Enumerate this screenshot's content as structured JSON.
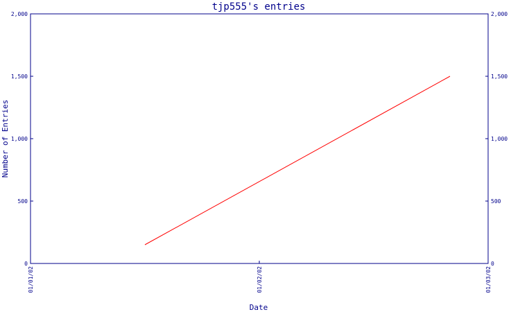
{
  "chart_data": {
    "type": "line",
    "title": "tjp555's entries",
    "xlabel": "Date",
    "ylabel": "Number of Entries",
    "x_ticks": [
      "01/01/02",
      "01/02/02",
      "01/03/02"
    ],
    "x_range": [
      "01/01/02",
      "01/03/02"
    ],
    "y_ticks": [
      "0",
      "500",
      "1,000",
      "1,500",
      "2,000"
    ],
    "y_tick_values": [
      0,
      500,
      1000,
      1500,
      2000
    ],
    "ylim": [
      0,
      2000
    ],
    "right_axis": true,
    "grid": false,
    "colors": {
      "axis": "#00008b",
      "line": "#ff0000",
      "background": "#ffffff"
    },
    "series": [
      {
        "points": [
          {
            "x": "01/01/02 12:00",
            "y": 150
          },
          {
            "x": "01/02/02 20:00",
            "y": 1500
          }
        ]
      }
    ]
  }
}
